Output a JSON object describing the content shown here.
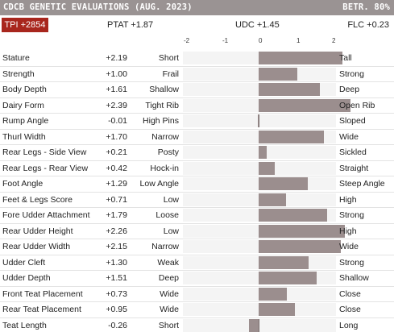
{
  "header": {
    "title": "CDCB GENETIC EVALUATIONS (AUG. 2023)",
    "reliability": "BETR. 80%"
  },
  "summary": {
    "tpi": "TPI +2854",
    "ptat": "PTAT +1.87",
    "udc": "UDC +1.45",
    "flc": "FLC +0.23"
  },
  "axis": {
    "ticks": [
      "-2",
      "-1",
      "0",
      "1",
      "2"
    ]
  },
  "colors": {
    "header_bg": "#9a9393",
    "tpi_bg": "#a8261d",
    "bar": "#9b8e8e",
    "track": "#f4f4f4"
  },
  "traits": [
    {
      "name": "Stature",
      "value": "+2.19",
      "low": "Short",
      "high": "Tall"
    },
    {
      "name": "Strength",
      "value": "+1.00",
      "low": "Frail",
      "high": "Strong"
    },
    {
      "name": "Body Depth",
      "value": "+1.61",
      "low": "Shallow",
      "high": "Deep"
    },
    {
      "name": "Dairy Form",
      "value": "+2.39",
      "low": "Tight Rib",
      "high": "Open Rib"
    },
    {
      "name": "Rump Angle",
      "value": "-0.01",
      "low": "High Pins",
      "high": "Sloped"
    },
    {
      "name": "Thurl Width",
      "value": "+1.70",
      "low": "Narrow",
      "high": "Wide"
    },
    {
      "name": "Rear Legs - Side View",
      "value": "+0.21",
      "low": "Posty",
      "high": "Sickled"
    },
    {
      "name": "Rear Legs - Rear View",
      "value": "+0.42",
      "low": "Hock-in",
      "high": "Straight"
    },
    {
      "name": "Foot Angle",
      "value": "+1.29",
      "low": "Low Angle",
      "high": "Steep Angle"
    },
    {
      "name": "Feet & Legs Score",
      "value": "+0.71",
      "low": "Low",
      "high": "High"
    },
    {
      "name": "Fore Udder Attachment",
      "value": "+1.79",
      "low": "Loose",
      "high": "Strong"
    },
    {
      "name": "Rear Udder Height",
      "value": "+2.26",
      "low": "Low",
      "high": "High"
    },
    {
      "name": "Rear Udder Width",
      "value": "+2.15",
      "low": "Narrow",
      "high": "Wide"
    },
    {
      "name": "Udder Cleft",
      "value": "+1.30",
      "low": "Weak",
      "high": "Strong"
    },
    {
      "name": "Udder Depth",
      "value": "+1.51",
      "low": "Deep",
      "high": "Shallow"
    },
    {
      "name": "Front Teat Placement",
      "value": "+0.73",
      "low": "Wide",
      "high": "Close"
    },
    {
      "name": "Rear Teat Placement",
      "value": "+0.95",
      "low": "Wide",
      "high": "Close"
    },
    {
      "name": "Teat Length",
      "value": "-0.26",
      "low": "Short",
      "high": "Long"
    }
  ]
}
